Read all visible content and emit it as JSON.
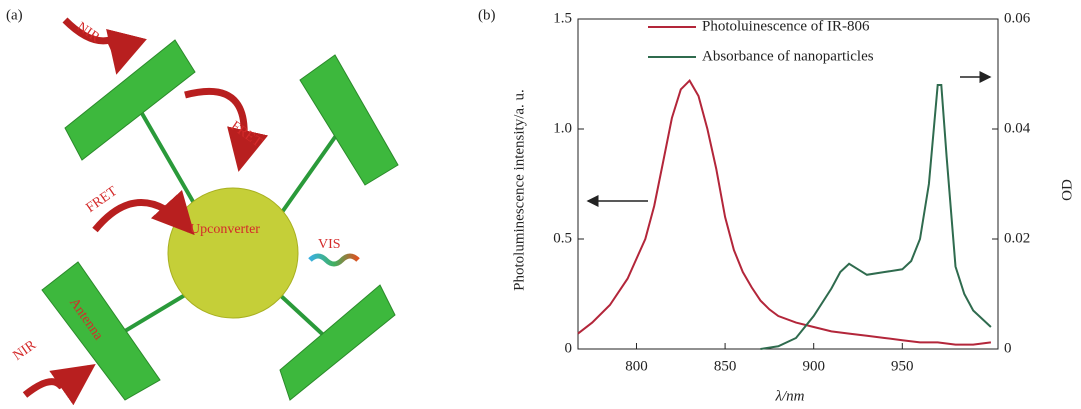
{
  "panel_a": {
    "label": "(a)",
    "nir_top": "NIR",
    "fret_top": "FRET",
    "fret_left": "FRET",
    "center": "Upconverter",
    "vis": "VIS",
    "antenna": "Antenna",
    "nir_bottom": "NIR"
  },
  "chart_data": {
    "type": "line",
    "panel_label": "(b)",
    "x_label": "λ/nm",
    "y_label": "Photoluminescence intensity/a. u.",
    "y2_label": "OD",
    "xlim": [
      767,
      1004
    ],
    "xticks": [
      800,
      850,
      900,
      950
    ],
    "ylim": [
      0,
      1.5
    ],
    "yticks": [
      0,
      0.5,
      {
        "value": 1,
        "label": "1.0"
      },
      1.5
    ],
    "y2lim": [
      0,
      0.06
    ],
    "y2ticks": [
      0,
      0.02,
      0.04,
      0.06
    ],
    "series": [
      {
        "name": "Photoluinescence of IR-806",
        "color": "#b3263a",
        "x": [
          767,
          775,
          785,
          795,
          805,
          810,
          815,
          820,
          825,
          830,
          835,
          840,
          845,
          850,
          855,
          860,
          865,
          870,
          875,
          880,
          890,
          900,
          910,
          920,
          930,
          940,
          950,
          960,
          970,
          980,
          990,
          1000
        ],
        "values": [
          0.07,
          0.12,
          0.2,
          0.32,
          0.5,
          0.65,
          0.85,
          1.05,
          1.18,
          1.22,
          1.15,
          1.0,
          0.82,
          0.6,
          0.45,
          0.35,
          0.28,
          0.22,
          0.18,
          0.15,
          0.12,
          0.1,
          0.08,
          0.07,
          0.06,
          0.05,
          0.04,
          0.03,
          0.03,
          0.02,
          0.02,
          0.03
        ]
      },
      {
        "name": "Absorbance of nanoparticles",
        "color": "#2f6b4e",
        "axis": "y2",
        "x": [
          870,
          880,
          890,
          900,
          910,
          915,
          920,
          925,
          930,
          940,
          950,
          955,
          960,
          965,
          970,
          972,
          975,
          980,
          985,
          990,
          1000
        ],
        "values": [
          0,
          0.0005,
          0.002,
          0.006,
          0.011,
          0.014,
          0.0155,
          0.0145,
          0.0135,
          0.014,
          0.0145,
          0.016,
          0.02,
          0.03,
          0.048,
          0.048,
          0.035,
          0.015,
          0.01,
          0.007,
          0.004
        ]
      }
    ]
  }
}
